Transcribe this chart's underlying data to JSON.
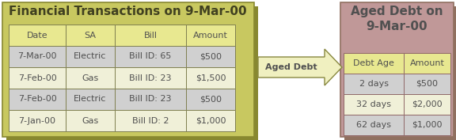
{
  "title_left": "Financial Transactions on 9-Mar-00",
  "title_right": "Aged Debt on\n9-Mar-00",
  "arrow_label": "Aged Debt",
  "left_headers": [
    "Date",
    "SA",
    "Bill",
    "Amount"
  ],
  "left_rows": [
    [
      "7-Mar-00",
      "Electric",
      "Bill ID: 65",
      "$500"
    ],
    [
      "7-Feb-00",
      "Gas",
      "Bill ID: 23",
      "$1,500"
    ],
    [
      "7-Feb-00",
      "Electric",
      "Bill ID: 23",
      "$500"
    ],
    [
      "7-Jan-00",
      "Gas",
      "Bill ID: 2",
      "$1,000"
    ]
  ],
  "right_headers": [
    "Debt Age",
    "Amount"
  ],
  "right_rows": [
    [
      "2 days",
      "$500"
    ],
    [
      "32 days",
      "$2,000"
    ],
    [
      "62 days",
      "$1,000"
    ]
  ],
  "left_fill": "#c8c860",
  "left_shadow": "#888830",
  "right_fill": "#c09898",
  "right_shadow": "#907060",
  "header_bg": "#e8e890",
  "row_bg_light": "#f0f0d8",
  "row_bg_dark": "#d0d0d0",
  "text_color": "#505050",
  "arrow_fill": "#f0f0c0",
  "arrow_edge": "#888840",
  "cell_edge_left": "#808050",
  "cell_edge_right": "#906868",
  "title_left_color": "#404020",
  "title_right_color": "#505050"
}
